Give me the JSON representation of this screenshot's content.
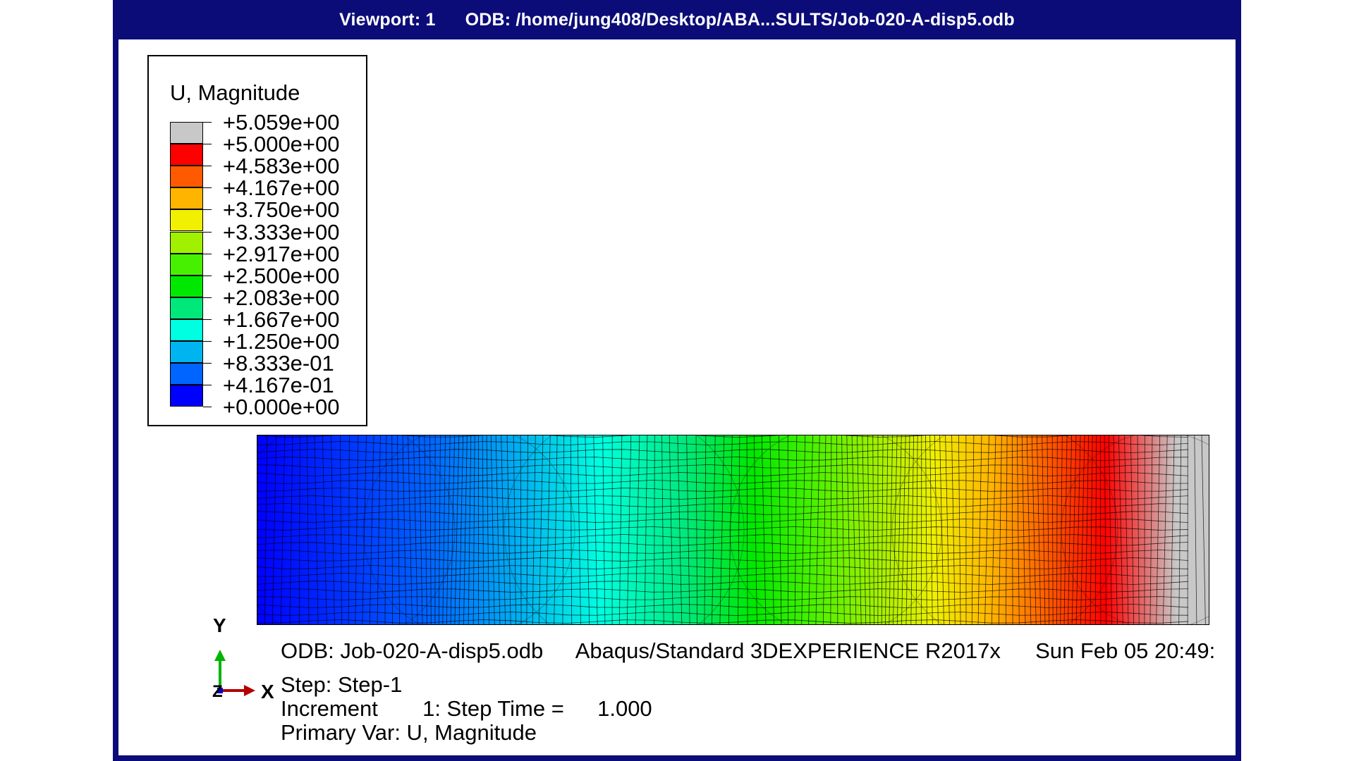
{
  "titlebar": {
    "viewport": "Viewport: 1",
    "odb_path": "ODB: /home/jung408/Desktop/ABA...SULTS/Job-020-A-disp5.odb"
  },
  "legend": {
    "title": "U, Magnitude",
    "labels": [
      "+5.059e+00",
      "+5.000e+00",
      "+4.583e+00",
      "+4.167e+00",
      "+3.750e+00",
      "+3.333e+00",
      "+2.917e+00",
      "+2.500e+00",
      "+2.083e+00",
      "+1.667e+00",
      "+1.250e+00",
      "+8.333e-01",
      "+4.167e-01",
      "+0.000e+00"
    ],
    "colors": [
      "#c8c8c8",
      "#ff0000",
      "#ff5a00",
      "#ffb400",
      "#f0f000",
      "#a0f000",
      "#46f000",
      "#00e800",
      "#00e87a",
      "#00ffe0",
      "#00b4f0",
      "#0064ff",
      "#0000ff"
    ]
  },
  "info": {
    "odb": "ODB: Job-020-A-disp5.odb",
    "solver": "Abaqus/Standard 3DEXPERIENCE R2017x",
    "date": "Sun Feb 05 20:49:",
    "step": "Step: Step-1",
    "increment_label": "Increment",
    "increment_value": "1: Step Time =",
    "step_time": "1.000",
    "primary_var": "Primary Var: U, Magnitude"
  },
  "triad": {
    "y": "Y",
    "x": "X",
    "z": "Z"
  }
}
